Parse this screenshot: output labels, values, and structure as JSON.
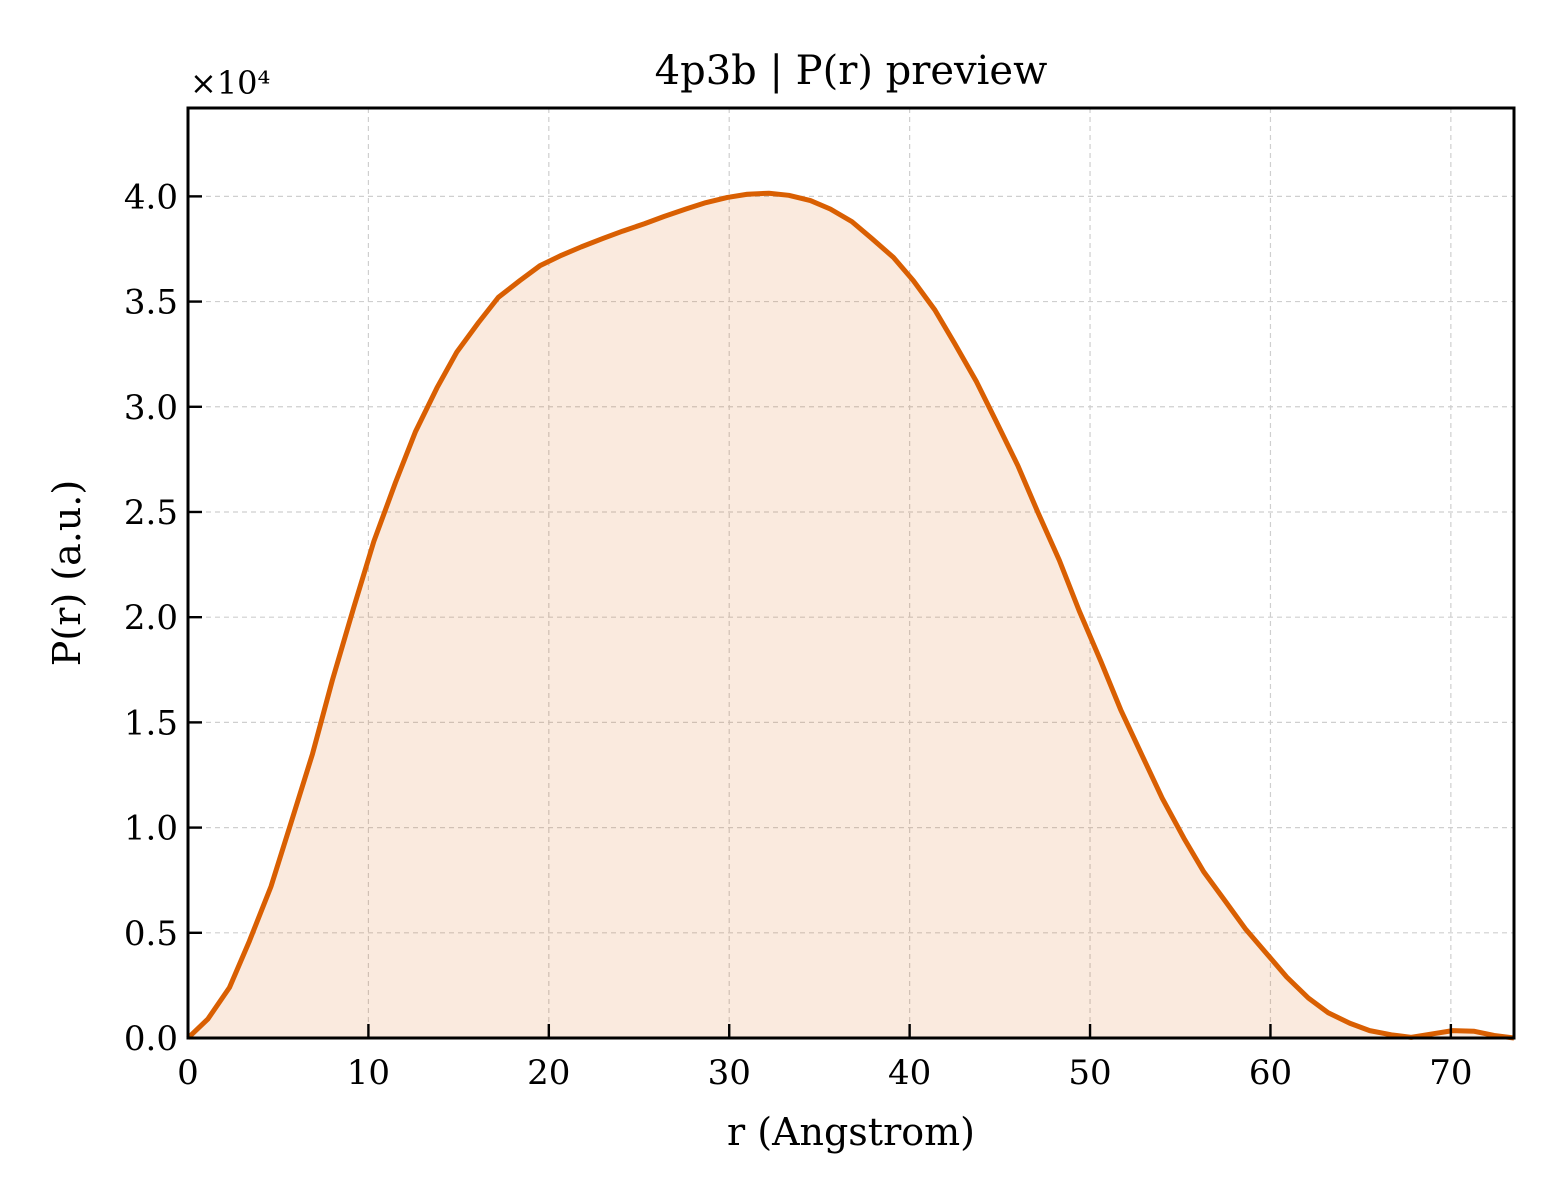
{
  "chart_data": {
    "type": "area",
    "title": "4p3b | P(r) preview",
    "xlabel": "r (Angstrom)",
    "ylabel": "P(r) (a.u.)",
    "y_multiplier_label": "×10⁴",
    "xlim": [
      0,
      73.5
    ],
    "ylim": [
      0,
      44200
    ],
    "x_ticks": [
      0,
      10,
      20,
      30,
      40,
      50,
      60,
      70
    ],
    "x_tick_labels": [
      "0",
      "10",
      "20",
      "30",
      "40",
      "50",
      "60",
      "70"
    ],
    "y_ticks": [
      0,
      5000,
      10000,
      15000,
      20000,
      25000,
      30000,
      35000,
      40000
    ],
    "y_tick_labels": [
      "0.0",
      "0.5",
      "1.0",
      "1.5",
      "2.0",
      "2.5",
      "3.0",
      "3.5",
      "4.0"
    ],
    "grid": true,
    "series": [
      {
        "color": "#d95f02",
        "fill_color": "#d95f02",
        "fill_opacity": 0.13,
        "x": [
          0,
          1.1,
          2.3,
          3.4,
          4.6,
          5.7,
          6.9,
          8.0,
          9.2,
          10.3,
          11.5,
          12.6,
          13.8,
          14.9,
          16.1,
          17.2,
          18.4,
          19.5,
          20.7,
          21.8,
          23.0,
          24.1,
          25.3,
          26.4,
          27.6,
          28.7,
          29.9,
          31.0,
          32.2,
          33.3,
          34.5,
          35.6,
          36.8,
          37.9,
          39.1,
          40.2,
          41.4,
          42.5,
          43.7,
          44.8,
          46.0,
          47.1,
          48.3,
          49.4,
          50.6,
          51.7,
          52.9,
          54.0,
          55.2,
          56.3,
          57.5,
          58.6,
          59.8,
          60.9,
          62.1,
          63.2,
          64.4,
          65.5,
          66.7,
          67.8,
          69.0,
          70.1,
          71.3,
          72.4,
          73.5
        ],
        "y": [
          0,
          900,
          2400,
          4600,
          7200,
          10200,
          13500,
          17000,
          20500,
          23600,
          26400,
          28800,
          30900,
          32600,
          34000,
          35200,
          36000,
          36700,
          37200,
          37600,
          38000,
          38350,
          38700,
          39050,
          39400,
          39700,
          39950,
          40100,
          40150,
          40050,
          39800,
          39400,
          38800,
          38000,
          37100,
          36000,
          34600,
          33000,
          31200,
          29300,
          27200,
          25000,
          22700,
          20300,
          17900,
          15600,
          13400,
          11400,
          9500,
          7900,
          6500,
          5200,
          4000,
          2900,
          1900,
          1200,
          700,
          350,
          150,
          30,
          200,
          350,
          320,
          120,
          0
        ]
      }
    ]
  }
}
